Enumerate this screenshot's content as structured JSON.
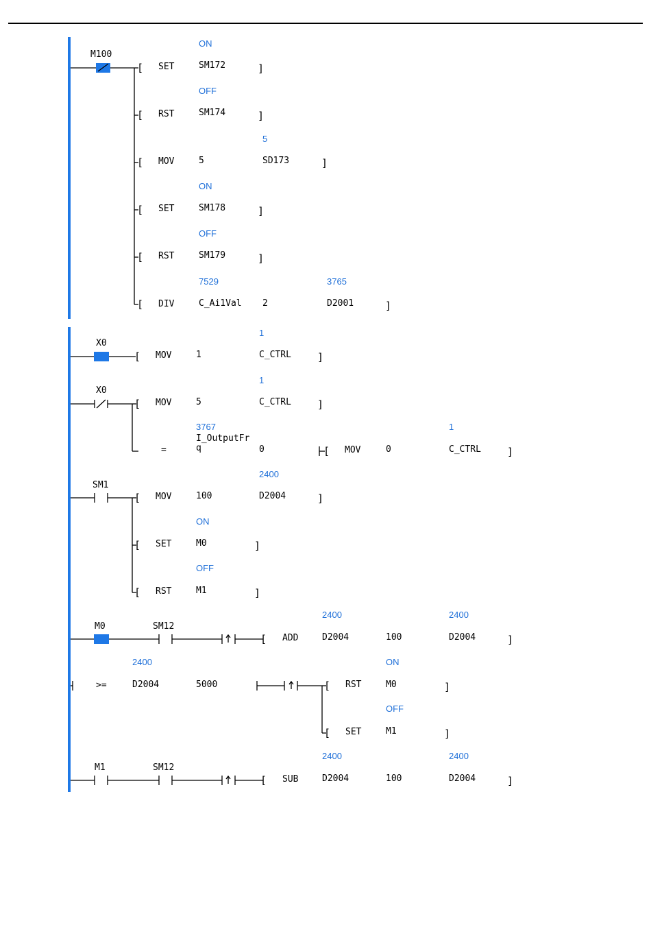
{
  "rungs": [
    {
      "id": "r1",
      "contact": {
        "label": "M100",
        "type": "nc_on"
      },
      "lines": [
        {
          "mnemonic": "SET",
          "operands": [
            "SM172"
          ],
          "values": [
            "ON"
          ]
        },
        {
          "mnemonic": "RST",
          "operands": [
            "SM174"
          ],
          "values": [
            "OFF"
          ]
        },
        {
          "mnemonic": "MOV",
          "operands": [
            "5",
            "SD173"
          ],
          "values": [
            "",
            "5"
          ]
        },
        {
          "mnemonic": "SET",
          "operands": [
            "SM178"
          ],
          "values": [
            "ON"
          ]
        },
        {
          "mnemonic": "RST",
          "operands": [
            "SM179"
          ],
          "values": [
            "OFF"
          ]
        },
        {
          "mnemonic": "DIV",
          "operands": [
            "C_Ai1Val",
            "2",
            "D2001"
          ],
          "values": [
            "7529",
            "",
            "3765"
          ]
        }
      ]
    },
    {
      "id": "r2",
      "contact": {
        "label": "X0",
        "type": "no_on"
      },
      "lines": [
        {
          "mnemonic": "MOV",
          "operands": [
            "1",
            "C_CTRL"
          ],
          "values": [
            "",
            "1"
          ]
        }
      ]
    },
    {
      "id": "r3",
      "contact": {
        "label": "X0",
        "type": "nc"
      },
      "lines": [
        {
          "mnemonic": "MOV",
          "operands": [
            "5",
            "C_CTRL"
          ],
          "values": [
            "",
            "1"
          ]
        },
        {
          "compare": "=",
          "operand1": "I_OutputFr\nq",
          "operand2": "0",
          "value1": "3767",
          "mnemonic": "MOV",
          "operands": [
            "0",
            "C_CTRL"
          ],
          "values": [
            "",
            "1"
          ]
        }
      ]
    },
    {
      "id": "r4",
      "contact": {
        "label": "SM1",
        "type": "no"
      },
      "lines": [
        {
          "mnemonic": "MOV",
          "operands": [
            "100",
            "D2004"
          ],
          "values": [
            "",
            "2400"
          ]
        },
        {
          "mnemonic": "SET",
          "operands": [
            "M0"
          ],
          "values": [
            "ON"
          ]
        },
        {
          "mnemonic": "RST",
          "operands": [
            "M1"
          ],
          "values": [
            "OFF"
          ]
        }
      ]
    },
    {
      "id": "r5",
      "contacts": [
        {
          "label": "M0",
          "type": "no_on"
        },
        {
          "label": "SM12",
          "type": "no"
        }
      ],
      "edge": "rising",
      "mnemonic": "ADD",
      "operands": [
        "D2004",
        "100",
        "D2004"
      ],
      "values": [
        "2400",
        "",
        "2400"
      ]
    },
    {
      "id": "r6",
      "compare": ">=",
      "operand1": "D2004",
      "operand2": "5000",
      "value1": "2400",
      "edge": "rising",
      "lines": [
        {
          "mnemonic": "RST",
          "operands": [
            "M0"
          ],
          "values": [
            "ON"
          ]
        },
        {
          "mnemonic": "SET",
          "operands": [
            "M1"
          ],
          "values": [
            "OFF"
          ]
        }
      ]
    },
    {
      "id": "r7",
      "contacts": [
        {
          "label": "M1",
          "type": "no"
        },
        {
          "label": "SM12",
          "type": "no"
        }
      ],
      "edge": "rising",
      "mnemonic": "SUB",
      "operands": [
        "D2004",
        "100",
        "D2004"
      ],
      "values": [
        "2400",
        "",
        "2400"
      ]
    }
  ],
  "colors": {
    "rail": "#1e78e6",
    "contact_on": "#1e78e6",
    "value": "#1e6fd8",
    "wire": "#000000"
  }
}
